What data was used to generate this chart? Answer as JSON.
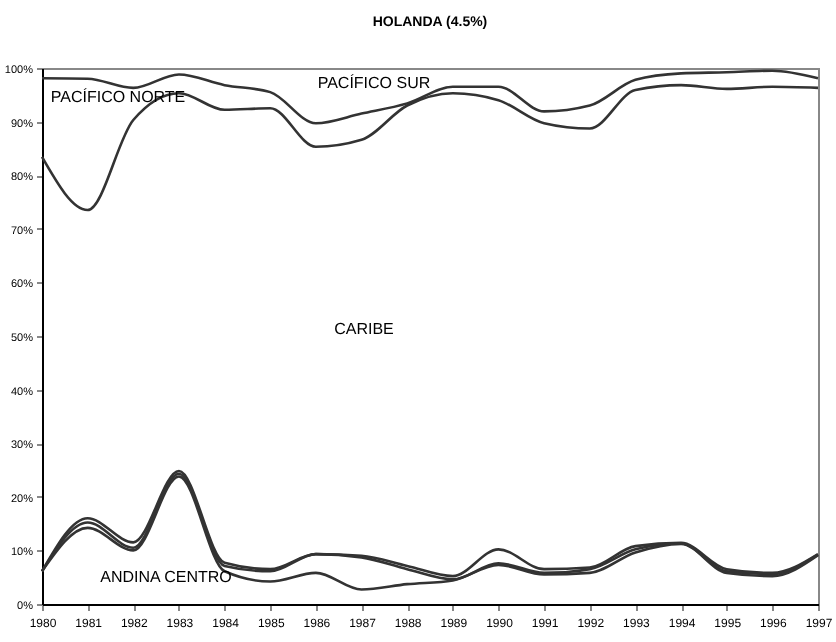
{
  "chart_data": {
    "type": "line",
    "title": "HOLANDA (4.5%)",
    "categories": [
      "1980",
      "1981",
      "1982",
      "1983",
      "1984",
      "1985",
      "1986",
      "1987",
      "1988",
      "1989",
      "1990",
      "1991",
      "1992",
      "1993",
      "1994",
      "1995",
      "1996",
      "1997"
    ],
    "series": [
      {
        "color": "#333333",
        "values": [
          98.1,
          98,
          96.3,
          98.8,
          96.8,
          95.5,
          89.7,
          91.5,
          93.4,
          96.5,
          96.5,
          91.9,
          93,
          97.8,
          99,
          99.2,
          99.5,
          98.1
        ]
      },
      {
        "color": "#333333",
        "values": [
          83.4,
          73.5,
          90.3,
          95.3,
          92.2,
          92.5,
          85.3,
          86.6,
          93,
          95.3,
          94,
          89.7,
          88.7,
          95.9,
          96.8,
          96.1,
          96.5,
          96.3
        ]
      },
      {
        "color": "#333333",
        "values": [
          6.1,
          16,
          11.5,
          24.8,
          7.7,
          6.5,
          9.3,
          9,
          7.1,
          5.2,
          10.2,
          6.5,
          6.8,
          10.8,
          11.4,
          6.5,
          5.8,
          9.3
        ]
      },
      {
        "color": "#333333",
        "values": [
          6.1,
          15.2,
          10.5,
          24.3,
          7.1,
          6.1,
          9.3,
          8.7,
          6.5,
          4.6,
          7.6,
          5.8,
          6.5,
          10.2,
          11.3,
          6.1,
          5.6,
          9.2
        ]
      },
      {
        "color": "#333333",
        "values": [
          6.1,
          14.2,
          10,
          23.8,
          6.1,
          4.2,
          5.8,
          2.7,
          3.7,
          4.4,
          7.3,
          5.5,
          5.8,
          9.6,
          11.2,
          5.8,
          5.2,
          9.1
        ]
      }
    ],
    "ylim": [
      0,
      100
    ],
    "yticks": [
      {
        "value": 0,
        "label": "0%"
      },
      {
        "value": 10,
        "label": "10%"
      },
      {
        "value": 20,
        "label": "20%"
      },
      {
        "value": 30,
        "label": "30%"
      },
      {
        "value": 40,
        "label": "40%"
      },
      {
        "value": 50,
        "label": "50%"
      },
      {
        "value": 60,
        "label": "60%"
      },
      {
        "value": 70,
        "label": "70%"
      },
      {
        "value": 80,
        "label": "80%"
      },
      {
        "value": 90,
        "label": "90%"
      },
      {
        "value": 100,
        "label": "100%"
      }
    ],
    "annotations": [
      "PACÍFICO NORTE",
      "PACÍFICO SUR",
      "CARIBE",
      "ANDINA CENTRO"
    ],
    "marker": "none",
    "line_style": "solid",
    "grid": false
  }
}
